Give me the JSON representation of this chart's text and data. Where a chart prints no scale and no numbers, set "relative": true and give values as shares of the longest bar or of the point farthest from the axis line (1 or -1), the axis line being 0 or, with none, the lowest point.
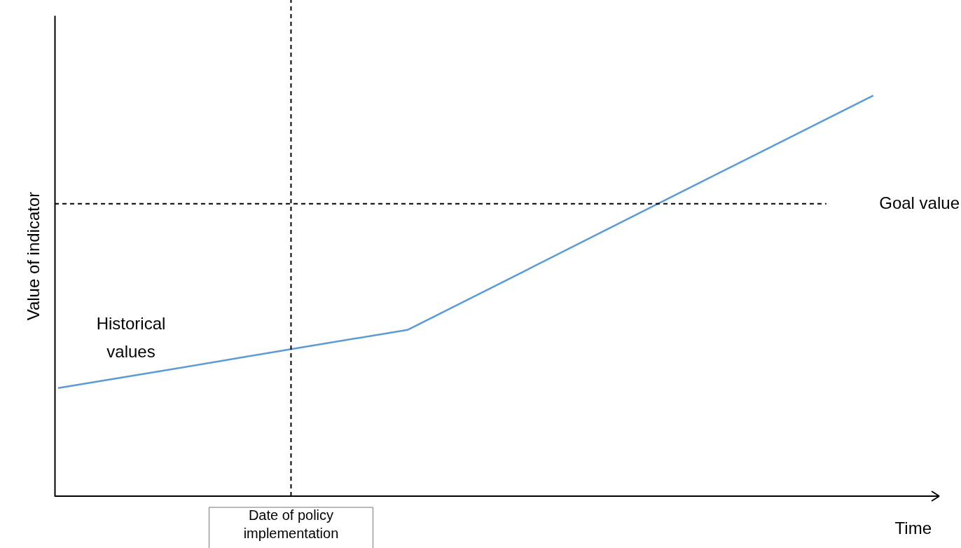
{
  "chart_data": {
    "type": "line",
    "relative": true,
    "xlabel": "Time",
    "ylabel": "Value of indicator",
    "categories": [
      null,
      null,
      null,
      null,
      null,
      null,
      null,
      null
    ],
    "series": [
      {
        "color": "#5b9bd5",
        "values": [
          0.27,
          0.318,
          0.367,
          0.415,
          0.561,
          0.708,
          0.854,
          1.0
        ]
      }
    ],
    "ref_lines": [
      {
        "axis": "y",
        "value": 0.73,
        "label": "Goal value",
        "line_style": "dashed",
        "color": "#000000"
      }
    ],
    "annotations": [
      "Historical values",
      "Date of policy implementation"
    ],
    "line_style": "solid"
  }
}
